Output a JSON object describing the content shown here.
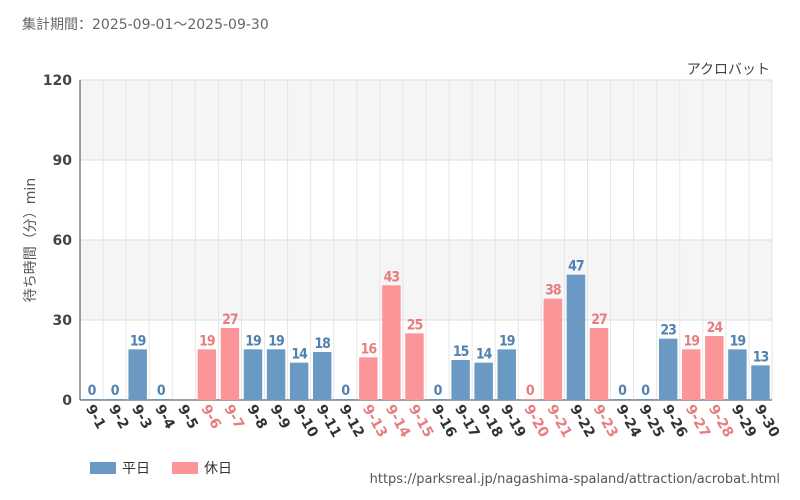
{
  "header": {
    "period_label": "集計期間：2025-09-01～2025-09-30"
  },
  "footer": {
    "url": "https://parksreal.jp/nagashima-spaland/attraction/acrobat.html"
  },
  "colors": {
    "weekday": "#6a9ac4",
    "holiday": "#fc9597",
    "holiday_text": "#e87c7e",
    "weekday_text": "#4f81b1"
  },
  "chart_data": {
    "type": "bar",
    "title": "アクロバット",
    "ylabel": "待ち時間（分）min",
    "xlabel": "",
    "ylim": [
      0,
      120
    ],
    "yticks": [
      0,
      30,
      60,
      90,
      120
    ],
    "grid": true,
    "legend": [
      {
        "name": "平日",
        "key": "weekday"
      },
      {
        "name": "休日",
        "key": "holiday"
      }
    ],
    "categories": [
      "9-1",
      "9-2",
      "9-3",
      "9-4",
      "9-5",
      "9-6",
      "9-7",
      "9-8",
      "9-9",
      "9-10",
      "9-11",
      "9-12",
      "9-13",
      "9-14",
      "9-15",
      "9-16",
      "9-17",
      "9-18",
      "9-19",
      "9-20",
      "9-21",
      "9-22",
      "9-23",
      "9-24",
      "9-25",
      "9-26",
      "9-27",
      "9-28",
      "9-29",
      "9-30"
    ],
    "values": [
      0,
      0,
      19,
      0,
      null,
      19,
      27,
      19,
      19,
      14,
      18,
      0,
      16,
      43,
      25,
      0,
      15,
      14,
      19,
      0,
      38,
      47,
      27,
      0,
      0,
      23,
      19,
      24,
      19,
      13
    ],
    "day_type": [
      "weekday",
      "weekday",
      "weekday",
      "weekday",
      "weekday",
      "holiday",
      "holiday",
      "weekday",
      "weekday",
      "weekday",
      "weekday",
      "weekday",
      "holiday",
      "holiday",
      "holiday",
      "weekday",
      "weekday",
      "weekday",
      "weekday",
      "holiday",
      "holiday",
      "weekday",
      "holiday",
      "weekday",
      "weekday",
      "weekday",
      "holiday",
      "holiday",
      "weekday",
      "weekday"
    ]
  }
}
